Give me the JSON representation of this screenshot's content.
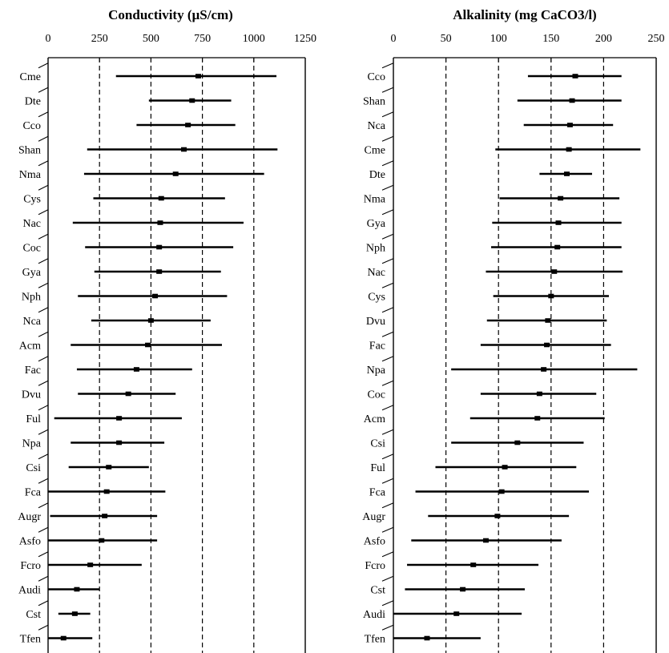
{
  "chart_data": [
    {
      "type": "range-plot",
      "title": "Conductivity (µS/cm)",
      "xlim": [
        0,
        1250
      ],
      "xticks": [
        0,
        250,
        500,
        750,
        1000,
        1250
      ],
      "gridlines": [
        250,
        500,
        750,
        1000
      ],
      "grid": "vertical dashed",
      "series": [
        {
          "label": "Cme",
          "min": 330,
          "max": 1110,
          "mean": 730
        },
        {
          "label": "Dte",
          "min": 490,
          "max": 890,
          "mean": 700
        },
        {
          "label": "Cco",
          "min": 430,
          "max": 910,
          "mean": 680
        },
        {
          "label": "Shan",
          "min": 190,
          "max": 1115,
          "mean": 660
        },
        {
          "label": "Nma",
          "min": 175,
          "max": 1050,
          "mean": 620
        },
        {
          "label": "Cys",
          "min": 220,
          "max": 860,
          "mean": 550
        },
        {
          "label": "Nac",
          "min": 120,
          "max": 950,
          "mean": 545
        },
        {
          "label": "Coc",
          "min": 180,
          "max": 900,
          "mean": 540
        },
        {
          "label": "Gya",
          "min": 225,
          "max": 840,
          "mean": 540
        },
        {
          "label": "Nph",
          "min": 145,
          "max": 870,
          "mean": 520
        },
        {
          "label": "Nca",
          "min": 210,
          "max": 790,
          "mean": 500
        },
        {
          "label": "Acm",
          "min": 110,
          "max": 845,
          "mean": 485
        },
        {
          "label": "Fac",
          "min": 140,
          "max": 700,
          "mean": 430
        },
        {
          "label": "Dvu",
          "min": 145,
          "max": 620,
          "mean": 390
        },
        {
          "label": "Ful",
          "min": 30,
          "max": 650,
          "mean": 345
        },
        {
          "label": "Npa",
          "min": 110,
          "max": 565,
          "mean": 345
        },
        {
          "label": "Csi",
          "min": 100,
          "max": 490,
          "mean": 295
        },
        {
          "label": "Fca",
          "min": 0,
          "max": 570,
          "mean": 285
        },
        {
          "label": "Augr",
          "min": 10,
          "max": 530,
          "mean": 275
        },
        {
          "label": "Asfo",
          "min": 0,
          "max": 530,
          "mean": 260
        },
        {
          "label": "Fcro",
          "min": 0,
          "max": 455,
          "mean": 205
        },
        {
          "label": "Audi",
          "min": 0,
          "max": 250,
          "mean": 140
        },
        {
          "label": "Cst",
          "min": 50,
          "max": 205,
          "mean": 130
        },
        {
          "label": "Tfen",
          "min": 0,
          "max": 215,
          "mean": 75
        }
      ]
    },
    {
      "type": "range-plot",
      "title": "Alkalinity (mg CaCO3/l)",
      "xlim": [
        0,
        250
      ],
      "xticks": [
        0,
        50,
        100,
        150,
        200,
        250
      ],
      "gridlines": [
        50,
        100,
        150,
        200
      ],
      "grid": "vertical dashed",
      "series": [
        {
          "label": "Cco",
          "min": 128,
          "max": 217,
          "mean": 173
        },
        {
          "label": "Shan",
          "min": 118,
          "max": 217,
          "mean": 170
        },
        {
          "label": "Nca",
          "min": 124,
          "max": 209,
          "mean": 168
        },
        {
          "label": "Cme",
          "min": 97,
          "max": 235,
          "mean": 167
        },
        {
          "label": "Dte",
          "min": 139,
          "max": 189,
          "mean": 165
        },
        {
          "label": "Nma",
          "min": 101,
          "max": 215,
          "mean": 159
        },
        {
          "label": "Gya",
          "min": 94,
          "max": 217,
          "mean": 157
        },
        {
          "label": "Nph",
          "min": 93,
          "max": 217,
          "mean": 156
        },
        {
          "label": "Nac",
          "min": 88,
          "max": 218,
          "mean": 153
        },
        {
          "label": "Cys",
          "min": 95,
          "max": 205,
          "mean": 150
        },
        {
          "label": "Dvu",
          "min": 89,
          "max": 203,
          "mean": 147
        },
        {
          "label": "Fac",
          "min": 83,
          "max": 207,
          "mean": 146
        },
        {
          "label": "Npa",
          "min": 55,
          "max": 232,
          "mean": 143
        },
        {
          "label": "Coc",
          "min": 83,
          "max": 193,
          "mean": 139
        },
        {
          "label": "Acm",
          "min": 73,
          "max": 201,
          "mean": 137
        },
        {
          "label": "Csi",
          "min": 55,
          "max": 181,
          "mean": 118
        },
        {
          "label": "Ful",
          "min": 40,
          "max": 174,
          "mean": 106
        },
        {
          "label": "Fca",
          "min": 21,
          "max": 186,
          "mean": 103
        },
        {
          "label": "Augr",
          "min": 33,
          "max": 167,
          "mean": 99
        },
        {
          "label": "Asfo",
          "min": 17,
          "max": 160,
          "mean": 88
        },
        {
          "label": "Fcro",
          "min": 13,
          "max": 138,
          "mean": 76
        },
        {
          "label": "Cst",
          "min": 11,
          "max": 125,
          "mean": 66
        },
        {
          "label": "Audi",
          "min": 0,
          "max": 122,
          "mean": 60
        },
        {
          "label": "Tfen",
          "min": 0,
          "max": 83,
          "mean": 32
        }
      ]
    }
  ]
}
